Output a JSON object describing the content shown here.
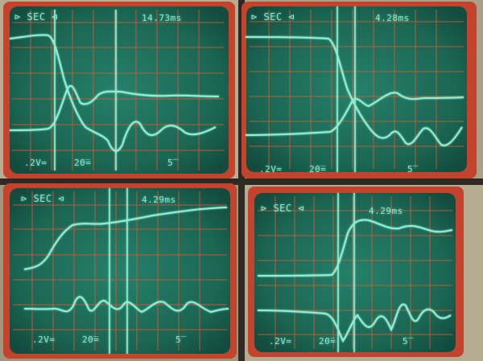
{
  "scopes": [
    {
      "sec_label": "SEC",
      "delta_time": "14.73ms",
      "ch1_scale": ".2V=",
      "ch2_scale": "20̅=",
      "timebase": "5̅̅"
    },
    {
      "sec_label": "SEC",
      "delta_time": "4.28ms",
      "ch1_scale": ".2V=",
      "ch2_scale": "20̅=",
      "timebase": "5̅̅"
    },
    {
      "sec_label": "SEC",
      "delta_time": "4.29ms",
      "ch1_scale": ".2V=",
      "ch2_scale": "20̅=",
      "timebase": "5̅̅"
    },
    {
      "sec_label": "SEC",
      "delta_time": "4.29ms",
      "ch1_scale": ".2V=",
      "ch2_scale": "20̅=",
      "timebase": "5̅̅"
    }
  ],
  "colors": {
    "trace": "#7fe8cc",
    "grid": "#d2552e",
    "screen": "#1e6b56",
    "bezel": "#c0402a",
    "frame": "#bfb59c"
  }
}
